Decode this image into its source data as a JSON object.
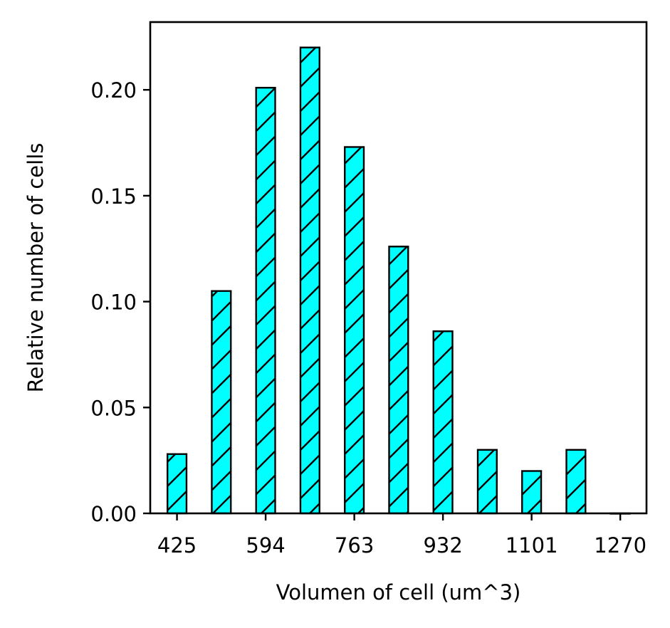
{
  "chart_data": {
    "type": "bar",
    "title": "",
    "xlabel": "Volumen of cell (um^3)",
    "ylabel": "Relative number of cells",
    "x_tick_labels": [
      "425",
      "594",
      "763",
      "932",
      "1101",
      "1270"
    ],
    "y_tick_labels": [
      "0.00",
      "0.05",
      "0.10",
      "0.15",
      "0.20"
    ],
    "x_tick_values": [
      425,
      594,
      763,
      932,
      1101,
      1270
    ],
    "y_tick_values": [
      0,
      0.05,
      0.1,
      0.15,
      0.2
    ],
    "bin_width": 84.5,
    "x": [
      425,
      509.5,
      594,
      678.5,
      763,
      847.5,
      932,
      1016.5,
      1101,
      1185.5,
      1270
    ],
    "values": [
      0.028,
      0.105,
      0.201,
      0.22,
      0.173,
      0.126,
      0.086,
      0.03,
      0.02,
      0.03,
      0.0
    ],
    "xlim": [
      374,
      1320
    ],
    "ylim": [
      0,
      0.232
    ],
    "grid": false,
    "legend": "none",
    "bar_color": "#00ffff",
    "edge_color": "#000000",
    "hatch": "/"
  }
}
